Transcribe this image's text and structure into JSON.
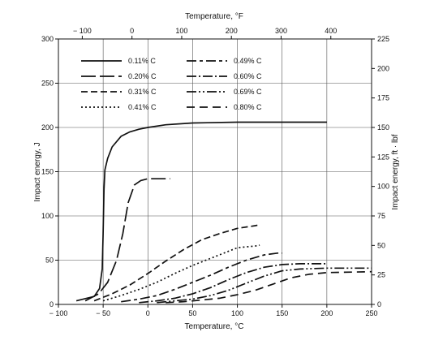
{
  "chart_data": {
    "type": "line",
    "title": "",
    "xlabel": "Temperature, °C",
    "ylabel": "Impact energy, J",
    "x2label": "Temperature, °F",
    "y2label": "Impact energy, ft · lbf",
    "xlim": [
      -100,
      250
    ],
    "ylim": [
      0,
      300
    ],
    "x2lim": [
      -148,
      482
    ],
    "y2lim": [
      0,
      225
    ],
    "xticks": [
      -100,
      -50,
      0,
      50,
      100,
      150,
      200,
      250
    ],
    "yticks": [
      0,
      50,
      100,
      150,
      200,
      250,
      300
    ],
    "x2ticks": [
      -100,
      0,
      100,
      200,
      300,
      400
    ],
    "y2ticks": [
      0,
      25,
      50,
      75,
      100,
      125,
      150,
      175,
      200,
      225
    ],
    "xtick_labels": [
      "− 100",
      "− 50",
      "0",
      "50",
      "100",
      "150",
      "200",
      "250"
    ],
    "ytick_labels": [
      "0",
      "50",
      "100",
      "150",
      "200",
      "250",
      "300"
    ],
    "x2tick_labels": [
      "− 100",
      "0",
      "100",
      "200",
      "300",
      "400"
    ],
    "y2tick_labels": [
      "0",
      "25",
      "50",
      "75",
      "100",
      "125",
      "150",
      "175",
      "200",
      "225"
    ],
    "grid": true,
    "legend_position": "top-left",
    "series": [
      {
        "name": "0.11% C",
        "dash": "",
        "points": [
          [
            -80,
            4
          ],
          [
            -60,
            9
          ],
          [
            -54,
            18
          ],
          [
            -51,
            40
          ],
          [
            -50,
            80
          ],
          [
            -49,
            130
          ],
          [
            -48,
            152
          ],
          [
            -45,
            165
          ],
          [
            -40,
            178
          ],
          [
            -30,
            190
          ],
          [
            -20,
            195
          ],
          [
            -10,
            198
          ],
          [
            0,
            200
          ],
          [
            20,
            203
          ],
          [
            50,
            205
          ],
          [
            100,
            206
          ],
          [
            150,
            206
          ],
          [
            200,
            206
          ]
        ]
      },
      {
        "name": "0.20% C",
        "dash": "18,5",
        "points": [
          [
            -70,
            4
          ],
          [
            -55,
            12
          ],
          [
            -45,
            25
          ],
          [
            -35,
            50
          ],
          [
            -28,
            80
          ],
          [
            -22,
            115
          ],
          [
            -15,
            135
          ],
          [
            -8,
            140
          ],
          [
            0,
            142
          ],
          [
            10,
            142
          ],
          [
            25,
            142
          ]
        ]
      },
      {
        "name": "0.31% C",
        "dash": "8,4",
        "points": [
          [
            -60,
            4
          ],
          [
            -40,
            12
          ],
          [
            -20,
            22
          ],
          [
            0,
            35
          ],
          [
            20,
            49
          ],
          [
            40,
            62
          ],
          [
            60,
            73
          ],
          [
            80,
            80
          ],
          [
            100,
            86
          ],
          [
            120,
            89
          ],
          [
            125,
            90
          ]
        ]
      },
      {
        "name": "0.41% C",
        "dash": "2,3",
        "points": [
          [
            -50,
            4
          ],
          [
            -30,
            10
          ],
          [
            -10,
            17
          ],
          [
            10,
            25
          ],
          [
            30,
            35
          ],
          [
            50,
            44
          ],
          [
            70,
            52
          ],
          [
            90,
            60
          ],
          [
            100,
            64
          ],
          [
            110,
            65
          ],
          [
            120,
            66
          ],
          [
            125,
            67
          ]
        ]
      },
      {
        "name": "0.49% C",
        "dash": "12,4,4,4",
        "points": [
          [
            -30,
            3
          ],
          [
            -10,
            6
          ],
          [
            10,
            10
          ],
          [
            30,
            17
          ],
          [
            50,
            25
          ],
          [
            70,
            33
          ],
          [
            90,
            42
          ],
          [
            110,
            50
          ],
          [
            130,
            56
          ],
          [
            145,
            58
          ],
          [
            150,
            58
          ]
        ]
      },
      {
        "name": "0.60% C",
        "dash": "12,3,2,3",
        "points": [
          [
            -10,
            2
          ],
          [
            10,
            4
          ],
          [
            30,
            7
          ],
          [
            50,
            12
          ],
          [
            70,
            19
          ],
          [
            90,
            28
          ],
          [
            110,
            36
          ],
          [
            130,
            42
          ],
          [
            150,
            45
          ],
          [
            170,
            46
          ],
          [
            200,
            46
          ]
        ]
      },
      {
        "name": "0.69% C",
        "dash": "12,3,2,3,2,3",
        "points": [
          [
            10,
            2
          ],
          [
            30,
            4
          ],
          [
            50,
            6
          ],
          [
            70,
            10
          ],
          [
            90,
            16
          ],
          [
            110,
            24
          ],
          [
            130,
            32
          ],
          [
            150,
            38
          ],
          [
            170,
            40
          ],
          [
            200,
            41
          ],
          [
            250,
            41
          ]
        ]
      },
      {
        "name": "0.80% C",
        "dash": "10,6",
        "points": [
          [
            20,
            2
          ],
          [
            40,
            3
          ],
          [
            60,
            5
          ],
          [
            80,
            7
          ],
          [
            100,
            11
          ],
          [
            120,
            16
          ],
          [
            140,
            23
          ],
          [
            160,
            30
          ],
          [
            180,
            34
          ],
          [
            200,
            36
          ],
          [
            250,
            37
          ]
        ]
      }
    ]
  }
}
